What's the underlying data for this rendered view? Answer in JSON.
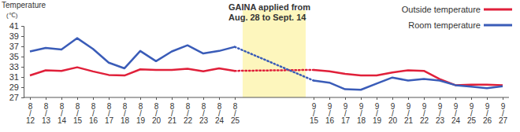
{
  "chart_data": {
    "type": "line",
    "ylabel": "Temperature",
    "yunit": "(℃)",
    "annotation": {
      "text": [
        "GAINA applied from",
        "Aug. 28 to Sept. 14"
      ]
    },
    "categories": [
      "8/12",
      "8/13",
      "8/14",
      "8/15",
      "8/16",
      "8/17",
      "8/18",
      "8/19",
      "8/20",
      "8/21",
      "8/22",
      "8/23",
      "8/24",
      "8/25",
      null,
      null,
      null,
      null,
      "9/15",
      "9/16",
      "9/17",
      "9/18",
      "9/19",
      "9/20",
      "9/21",
      "9/22",
      "9/23",
      "9/24",
      "9/25",
      "9/26",
      "9/27"
    ],
    "series": [
      {
        "name": "Outside temperature",
        "color": "#e0203a",
        "values": [
          31.3,
          32.3,
          32.2,
          32.9,
          32.1,
          31.4,
          31.3,
          32.5,
          32.4,
          32.4,
          32.6,
          32.1,
          32.7,
          32.2,
          null,
          null,
          null,
          null,
          32.4,
          32.1,
          31.6,
          31.3,
          31.3,
          31.9,
          32.3,
          32.2,
          30.6,
          29.4,
          29.5,
          29.5,
          29.4
        ]
      },
      {
        "name": "Room temperature",
        "color": "#3a5cb8",
        "values": [
          36.0,
          36.7,
          36.4,
          38.6,
          36.5,
          33.8,
          32.7,
          36.1,
          34.1,
          36.0,
          37.2,
          35.6,
          36.1,
          36.9,
          null,
          null,
          null,
          null,
          30.3,
          29.9,
          28.6,
          28.5,
          29.7,
          30.9,
          30.3,
          30.6,
          30.3,
          29.4,
          29.1,
          28.8,
          29.2
        ]
      }
    ],
    "ylim": [
      27,
      41
    ],
    "yticks": [
      27,
      29,
      31,
      33,
      35,
      37,
      39,
      41
    ],
    "legend": "upper right",
    "grid": false
  }
}
